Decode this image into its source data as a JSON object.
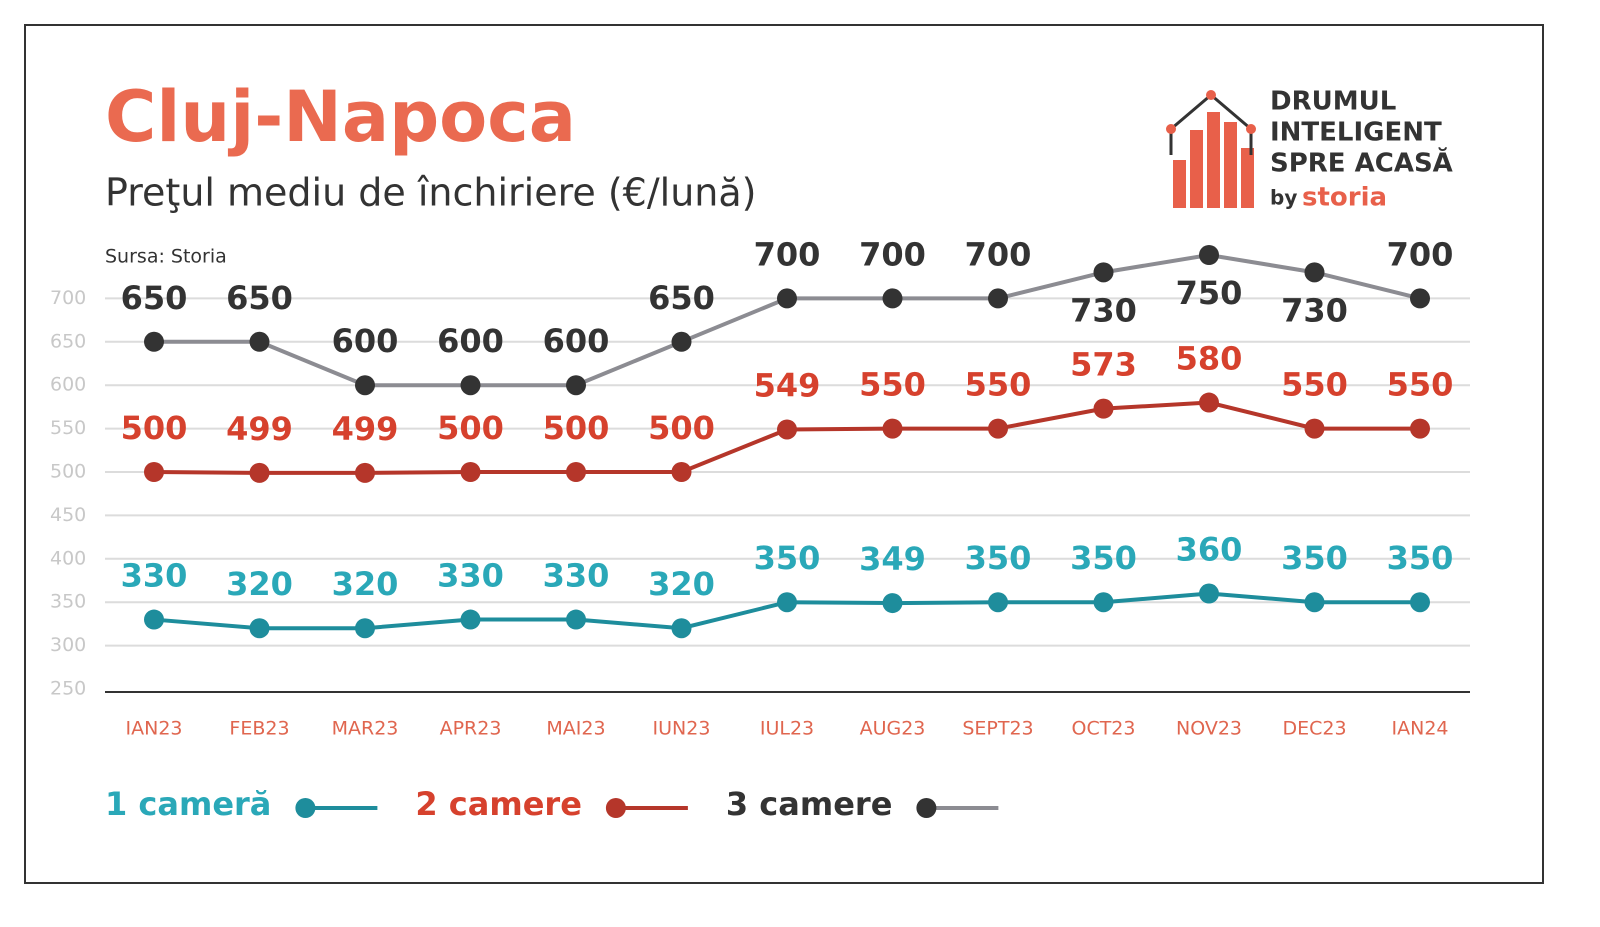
{
  "chart_data": {
    "type": "line",
    "title": "Cluj-Napoca",
    "subtitle": "Preţul mediu de închiriere (€/lună)",
    "source": "Sursa: Storia",
    "brand": {
      "lines": [
        "DRUMUL",
        "INTELIGENT",
        "SPRE ACASĂ"
      ],
      "by": "by",
      "name": "storia"
    },
    "categories": [
      "IAN23",
      "FEB23",
      "MAR23",
      "APR23",
      "MAI23",
      "IUN23",
      "IUL23",
      "AUG23",
      "SEPT23",
      "OCT23",
      "NOV23",
      "DEC23",
      "IAN24"
    ],
    "series": [
      {
        "name": "1 cameră",
        "color": "#1e8d9c",
        "label_color": "#2aa8b8",
        "values": [
          330,
          320,
          320,
          330,
          330,
          320,
          350,
          349,
          350,
          350,
          360,
          350,
          350
        ]
      },
      {
        "name": "2 camere",
        "color": "#b5362a",
        "label_color": "#d6412d",
        "values": [
          500,
          499,
          499,
          500,
          500,
          500,
          549,
          550,
          550,
          573,
          580,
          550,
          550
        ]
      },
      {
        "name": "3 camere",
        "color": "#8c8c92",
        "label_color": "#333333",
        "marker_color": "#333333",
        "values": [
          650,
          650,
          600,
          600,
          600,
          650,
          700,
          700,
          700,
          730,
          750,
          730,
          700
        ]
      }
    ],
    "ylim": [
      250,
      750
    ],
    "yticks": [
      250,
      300,
      350,
      400,
      450,
      500,
      550,
      600,
      650,
      700
    ],
    "grid": true
  }
}
